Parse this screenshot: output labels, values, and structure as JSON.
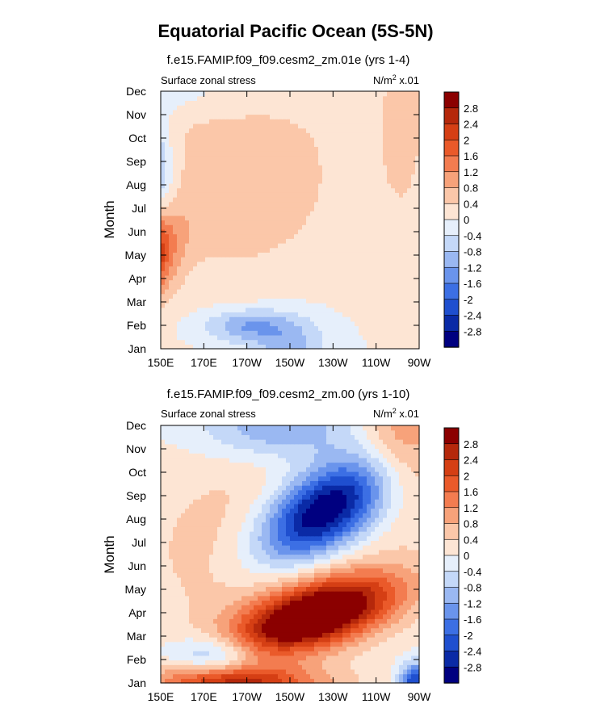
{
  "figure": {
    "title": "Equatorial Pacific Ocean (5S-5N)"
  },
  "colors": {
    "levels": [
      "#000080",
      "#0a2aa6",
      "#1f4fcf",
      "#3c6fe4",
      "#6a94ec",
      "#9ab8f2",
      "#c4d8f8",
      "#e6effb",
      "#fde5d4",
      "#fbc7a9",
      "#f7a27a",
      "#f37c50",
      "#ea5a2a",
      "#d53f14",
      "#b5280b",
      "#8b0000"
    ]
  },
  "chart_data": [
    {
      "type": "heatmap",
      "subtitle": "f.e15.FAMIP.f09_f09.cesm2_zm.01e (yrs 1-4)",
      "left_label": "Surface zonal stress",
      "right_label_base": "N/m",
      "right_label_exp": "2",
      "right_label_tail": " x.01",
      "ylabel": "Month",
      "x_ticks": [
        "150E",
        "170E",
        "170W",
        "150W",
        "130W",
        "110W",
        "90W"
      ],
      "y_ticks": [
        "Jan",
        "Feb",
        "Mar",
        "Apr",
        "May",
        "Jun",
        "Jul",
        "Aug",
        "Sep",
        "Oct",
        "Nov",
        "Dec"
      ],
      "xlim_deg": [
        150,
        270
      ],
      "colorbar_levels": [
        "2.8",
        "2.4",
        "2",
        "1.6",
        "1.2",
        "0.8",
        "0.4",
        "0",
        "-0.4",
        "-0.8",
        "-1.2",
        "-1.6",
        "-2",
        "-2.4",
        "-2.8"
      ],
      "features": [
        {
          "lon": 135,
          "month": 3.5,
          "amp": 4.2,
          "sx": 13,
          "sy": 1.45,
          "rho": 0.45
        },
        {
          "lon": 132,
          "month": 8.4,
          "amp": -4.2,
          "sx": 12,
          "sy": 1.7,
          "rho": -0.35
        },
        {
          "lon": 185,
          "month": 7.5,
          "amp": 0.75,
          "sx": 35,
          "sy": 3.2,
          "rho": 0.0
        },
        {
          "lon": 190,
          "month": 1.0,
          "amp": -1.2,
          "sx": 14,
          "sy": 0.5,
          "rho": 0.0
        },
        {
          "lon": 210,
          "month": 0.0,
          "amp": -1.0,
          "sx": 12,
          "sy": 1.0,
          "rho": 0.0
        },
        {
          "lon": 262,
          "month": 9.8,
          "amp": 0.6,
          "sx": 8,
          "sy": 3.0,
          "rho": 0.0
        },
        {
          "lon": 165,
          "month": 10.8,
          "amp": -0.4,
          "sx": 30,
          "sy": 0.8,
          "rho": 0.0
        }
      ]
    },
    {
      "type": "heatmap",
      "subtitle": "f.e15.FAMIP.f09_f09.cesm2_zm.00 (yrs 1-10)",
      "left_label": "Surface zonal stress",
      "right_label_base": "N/m",
      "right_label_exp": "2",
      "right_label_tail": " x.01",
      "ylabel": "Month",
      "x_ticks": [
        "150E",
        "170E",
        "170W",
        "150W",
        "130W",
        "110W",
        "90W"
      ],
      "y_ticks": [
        "Jan",
        "Feb",
        "Mar",
        "Apr",
        "May",
        "Jun",
        "Jul",
        "Aug",
        "Sep",
        "Oct",
        "Nov",
        "Dec"
      ],
      "xlim_deg": [
        150,
        270
      ],
      "colorbar_levels": [
        "2.8",
        "2.4",
        "2",
        "1.6",
        "1.2",
        "0.8",
        "0.4",
        "0",
        "-0.4",
        "-0.8",
        "-1.2",
        "-1.6",
        "-2",
        "-2.4",
        "-2.8"
      ],
      "features": [
        {
          "lon": 222,
          "month": 2.9,
          "amp": 3.8,
          "sx": 26,
          "sy": 1.15,
          "rho": 0.55
        },
        {
          "lon": 225,
          "month": 7.3,
          "amp": -3.8,
          "sx": 22,
          "sy": 1.6,
          "rho": 0.55
        },
        {
          "lon": 175,
          "month": 1.2,
          "amp": -1.4,
          "sx": 14,
          "sy": 0.6,
          "rho": 0.0
        },
        {
          "lon": 185,
          "month": 0.0,
          "amp": 2.4,
          "sx": 28,
          "sy": 0.55,
          "rho": 0.0
        },
        {
          "lon": 200,
          "month": 5.5,
          "amp": 0.8,
          "sx": 40,
          "sy": 3.0,
          "rho": 0.0
        },
        {
          "lon": 262,
          "month": 10.5,
          "amp": 1.3,
          "sx": 14,
          "sy": 2.0,
          "rho": 0.0
        },
        {
          "lon": 205,
          "month": 11.0,
          "amp": -1.3,
          "sx": 25,
          "sy": 1.0,
          "rho": 0.0
        },
        {
          "lon": 268,
          "month": 0.0,
          "amp": -2.5,
          "sx": 5,
          "sy": 0.6,
          "rho": 0.0
        }
      ]
    }
  ]
}
